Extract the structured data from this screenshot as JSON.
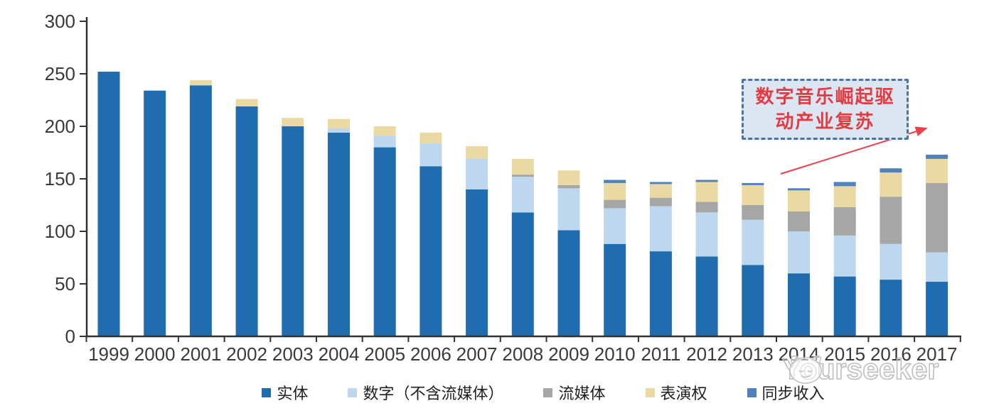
{
  "chart_data": {
    "type": "bar",
    "subtype": "stacked",
    "title": "",
    "xlabel": "",
    "ylabel": "",
    "categories": [
      "1999",
      "2000",
      "2001",
      "2002",
      "2003",
      "2004",
      "2005",
      "2006",
      "2007",
      "2008",
      "2009",
      "2010",
      "2011",
      "2012",
      "2013",
      "2014",
      "2015",
      "2016",
      "2017"
    ],
    "series": [
      {
        "key": "physical",
        "name": "实体",
        "color": "#1f6cae",
        "values": [
          252,
          234,
          239,
          219,
          200,
          194,
          180,
          162,
          140,
          118,
          101,
          88,
          81,
          76,
          68,
          60,
          57,
          54,
          52
        ]
      },
      {
        "key": "digital-excl-streaming",
        "name": "数字（不含流媒体）",
        "color": "#bdd7ee",
        "values": [
          0,
          0,
          0,
          0,
          0,
          4,
          11,
          22,
          29,
          34,
          40,
          34,
          43,
          42,
          43,
          40,
          39,
          34,
          28
        ]
      },
      {
        "key": "streaming",
        "name": "流媒体",
        "color": "#a6a6a6",
        "values": [
          0,
          0,
          0,
          0,
          0,
          0,
          0,
          0,
          0,
          2,
          3,
          8,
          8,
          10,
          14,
          19,
          27,
          45,
          66
        ]
      },
      {
        "key": "performance-rights",
        "name": "表演权",
        "color": "#ead9a2",
        "values": [
          0,
          0,
          5,
          7,
          8,
          9,
          9,
          10,
          12,
          15,
          14,
          16,
          13,
          19,
          19,
          20,
          20,
          23,
          23
        ]
      },
      {
        "key": "sync",
        "name": "同步收入",
        "color": "#4e81bd",
        "values": [
          0,
          0,
          0,
          0,
          0,
          0,
          0,
          0,
          0,
          0,
          0,
          3,
          2,
          2,
          2,
          2,
          4,
          4,
          4
        ]
      }
    ],
    "ylim": [
      0,
      300
    ],
    "y_ticks": [
      0,
      50,
      100,
      150,
      200,
      250,
      300
    ],
    "grid": false,
    "legend_position": "bottom"
  },
  "annotation": {
    "lines": [
      "数字音乐崛起驱",
      "动产业复苏"
    ],
    "text_color": "#e03c43",
    "border_color": "#4a72a8",
    "fill_color": "#dce6f2",
    "arrow_color": "#ee3f4d"
  },
  "watermark": {
    "text": "Yourseeker"
  }
}
